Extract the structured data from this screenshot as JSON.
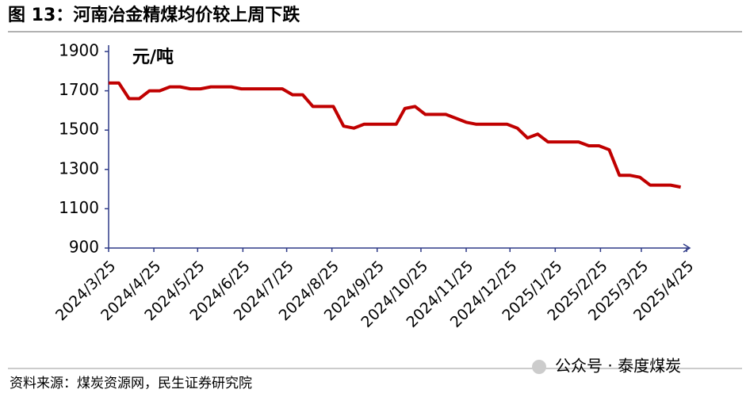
{
  "title": "图 13：河南冶金精煤均价较上周下跌",
  "source": "资料来源：煤炭资源网，民生证券研究院",
  "watermark": "公众号 · 泰度煤炭",
  "chart_data": {
    "type": "line",
    "ylabel": "元/吨",
    "x": [
      "2024/3/25",
      "2024/4/1",
      "2024/4/8",
      "2024/4/15",
      "2024/4/22",
      "2024/4/29",
      "2024/5/6",
      "2024/5/13",
      "2024/5/20",
      "2024/5/27",
      "2024/6/3",
      "2024/6/10",
      "2024/6/17",
      "2024/6/24",
      "2024/7/1",
      "2024/7/8",
      "2024/7/15",
      "2024/7/22",
      "2024/7/29",
      "2024/8/5",
      "2024/8/12",
      "2024/8/19",
      "2024/8/26",
      "2024/9/2",
      "2024/9/9",
      "2024/9/16",
      "2024/9/23",
      "2024/9/30",
      "2024/10/8",
      "2024/10/14",
      "2024/10/21",
      "2024/10/28",
      "2024/11/4",
      "2024/11/11",
      "2024/11/18",
      "2024/11/25",
      "2024/12/2",
      "2024/12/9",
      "2024/12/16",
      "2024/12/23",
      "2024/12/30",
      "2025/1/6",
      "2025/1/13",
      "2025/1/20",
      "2025/2/3",
      "2025/2/10",
      "2025/2/17",
      "2025/2/24",
      "2025/3/3",
      "2025/3/10",
      "2025/3/17",
      "2025/3/24",
      "2025/3/31",
      "2025/4/7",
      "2025/4/14",
      "2025/4/21"
    ],
    "series": [
      {
        "name": "河南冶金精煤均价",
        "color": "#c00000",
        "values": [
          1740,
          1740,
          1660,
          1660,
          1700,
          1700,
          1720,
          1720,
          1710,
          1710,
          1720,
          1720,
          1720,
          1710,
          1710,
          1710,
          1710,
          1710,
          1680,
          1680,
          1620,
          1620,
          1620,
          1520,
          1510,
          1530,
          1530,
          1530,
          1530,
          1610,
          1620,
          1580,
          1580,
          1580,
          1560,
          1540,
          1530,
          1530,
          1530,
          1530,
          1510,
          1460,
          1480,
          1440,
          1440,
          1440,
          1420,
          1420,
          1400,
          1270,
          1270,
          1260,
          1220,
          1220,
          1220,
          1210
        ]
      }
    ],
    "xlim": [
      "2024/3/25",
      "2025/4/25"
    ],
    "xticks": [
      "2024/3/25",
      "2024/4/25",
      "2024/5/25",
      "2024/6/25",
      "2024/7/25",
      "2024/8/25",
      "2024/9/25",
      "2024/10/25",
      "2024/11/25",
      "2024/12/25",
      "2025/1/25",
      "2025/2/25",
      "2025/3/25",
      "2025/4/25"
    ],
    "ylim": [
      900,
      1900
    ],
    "yticks": [
      900,
      1100,
      1300,
      1500,
      1700,
      1900
    ]
  }
}
